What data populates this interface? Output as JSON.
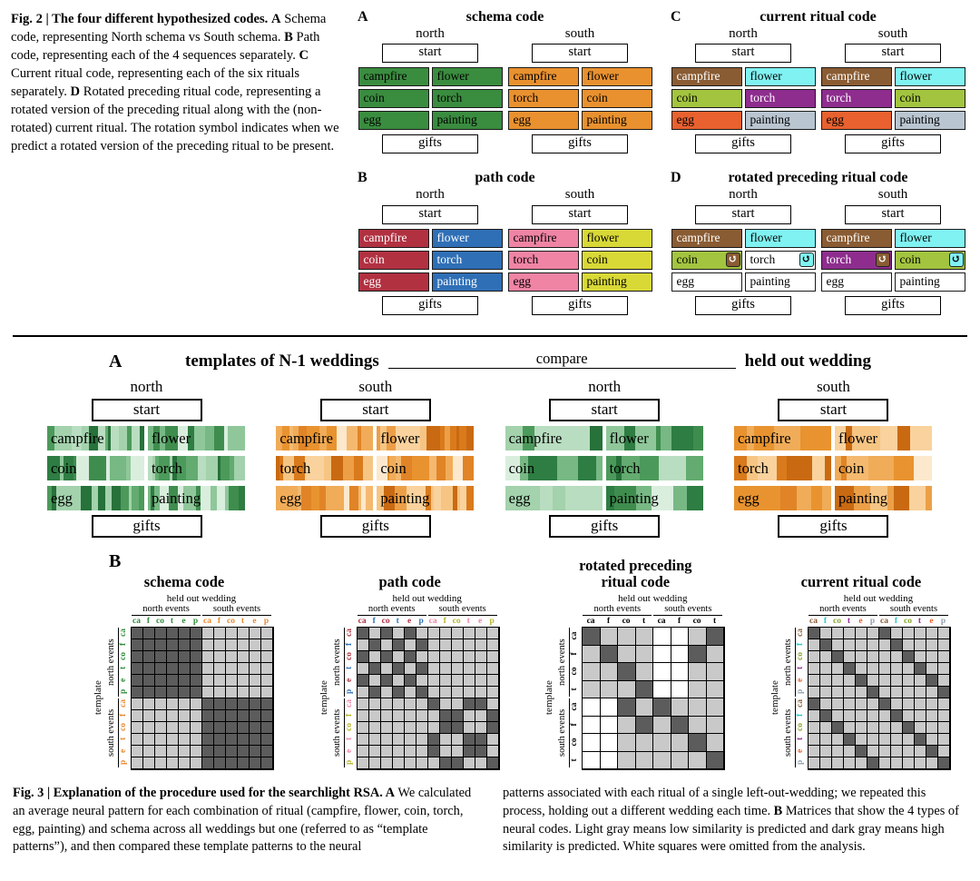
{
  "fig2": {
    "start_label": "start",
    "gifts_label": "gifts",
    "rotation_symbol": "↺",
    "caption_segments": [
      {
        "b": 1,
        "t": "Fig. 2 | The four different hypothesized codes."
      },
      {
        "b": 0,
        "t": " "
      },
      {
        "b": 1,
        "t": "A"
      },
      {
        "b": 0,
        "t": " Schema code, representing North schema vs South schema. "
      },
      {
        "b": 1,
        "t": "B"
      },
      {
        "b": 0,
        "t": " Path code, representing each of the 4 sequences separately. "
      },
      {
        "b": 1,
        "t": "C"
      },
      {
        "b": 0,
        "t": " Current ritual code, representing each of the six rituals separately. "
      },
      {
        "b": 1,
        "t": "D"
      },
      {
        "b": 0,
        "t": " Rotated preceding ritual code, representing a rotated version of the preceding ritual along with the (non-rotated) current ritual. The rotation symbol indicates when we predict a rotated version of the preceding ritual to be present."
      }
    ],
    "panels": [
      {
        "letter": "A",
        "title": "schema code",
        "columns": [
          {
            "name": "north",
            "rows": [
              [
                [
                  "campfire",
                  "#3a8c3f",
                  "#000000"
                ],
                [
                  "flower",
                  "#3a8c3f",
                  "#000000"
                ]
              ],
              [
                [
                  "coin",
                  "#3a8c3f",
                  "#000000"
                ],
                [
                  "torch",
                  "#3a8c3f",
                  "#000000"
                ]
              ],
              [
                [
                  "egg",
                  "#3a8c3f",
                  "#000000"
                ],
                [
                  "painting",
                  "#3a8c3f",
                  "#000000"
                ]
              ]
            ]
          },
          {
            "name": "south",
            "rows": [
              [
                [
                  "campfire",
                  "#e9912f",
                  "#000000"
                ],
                [
                  "flower",
                  "#e9912f",
                  "#000000"
                ]
              ],
              [
                [
                  "torch",
                  "#e9912f",
                  "#000000"
                ],
                [
                  "coin",
                  "#e9912f",
                  "#000000"
                ]
              ],
              [
                [
                  "egg",
                  "#e9912f",
                  "#000000"
                ],
                [
                  "painting",
                  "#e9912f",
                  "#000000"
                ]
              ]
            ]
          }
        ]
      },
      {
        "letter": "C",
        "title": "current ritual code",
        "columns": [
          {
            "name": "north",
            "rows": [
              [
                [
                  "campfire",
                  "#8a5c33",
                  "#ffffff"
                ],
                [
                  "flower",
                  "#80f2f2",
                  "#000000"
                ]
              ],
              [
                [
                  "coin",
                  "#a3c43f",
                  "#000000"
                ],
                [
                  "torch",
                  "#8e2d8e",
                  "#ffffff"
                ]
              ],
              [
                [
                  "egg",
                  "#e8612f",
                  "#000000"
                ],
                [
                  "painting",
                  "#b9c5d1",
                  "#000000"
                ]
              ]
            ]
          },
          {
            "name": "south",
            "rows": [
              [
                [
                  "campfire",
                  "#8a5c33",
                  "#ffffff"
                ],
                [
                  "flower",
                  "#80f2f2",
                  "#000000"
                ]
              ],
              [
                [
                  "torch",
                  "#8e2d8e",
                  "#ffffff"
                ],
                [
                  "coin",
                  "#a3c43f",
                  "#000000"
                ]
              ],
              [
                [
                  "egg",
                  "#e8612f",
                  "#000000"
                ],
                [
                  "painting",
                  "#b9c5d1",
                  "#000000"
                ]
              ]
            ]
          }
        ]
      },
      {
        "letter": "B",
        "title": "path code",
        "columns": [
          {
            "name": "north",
            "rows": [
              [
                [
                  "campfire",
                  "#b13141",
                  "#ffffff"
                ],
                [
                  "flower",
                  "#2f6fb6",
                  "#ffffff"
                ]
              ],
              [
                [
                  "coin",
                  "#b13141",
                  "#ffffff"
                ],
                [
                  "torch",
                  "#2f6fb6",
                  "#ffffff"
                ]
              ],
              [
                [
                  "egg",
                  "#b13141",
                  "#ffffff"
                ],
                [
                  "painting",
                  "#2f6fb6",
                  "#ffffff"
                ]
              ]
            ]
          },
          {
            "name": "south",
            "rows": [
              [
                [
                  "campfire",
                  "#ef84a4",
                  "#000000"
                ],
                [
                  "flower",
                  "#d8d837",
                  "#000000"
                ]
              ],
              [
                [
                  "torch",
                  "#ef84a4",
                  "#000000"
                ],
                [
                  "coin",
                  "#d8d837",
                  "#000000"
                ]
              ],
              [
                [
                  "egg",
                  "#ef84a4",
                  "#000000"
                ],
                [
                  "painting",
                  "#d8d837",
                  "#000000"
                ]
              ]
            ]
          }
        ]
      },
      {
        "letter": "D",
        "title": "rotated preceding ritual code",
        "columns": [
          {
            "name": "north",
            "rows": [
              [
                [
                  "campfire",
                  "#8a5c33",
                  "#ffffff"
                ],
                [
                  "flower",
                  "#80f2f2",
                  "#000000"
                ]
              ],
              [
                [
                  "coin",
                  "#a3c43f",
                  "#000000",
                  [
                    "#8a5c33",
                    "#ffffff"
                  ]
                ],
                [
                  "torch",
                  "#ffffff",
                  "#000000",
                  [
                    "#80f2f2",
                    "#000000"
                  ]
                ]
              ],
              [
                [
                  "egg",
                  "#ffffff",
                  "#000000"
                ],
                [
                  "painting",
                  "#ffffff",
                  "#000000"
                ]
              ]
            ]
          },
          {
            "name": "south",
            "rows": [
              [
                [
                  "campfire",
                  "#8a5c33",
                  "#ffffff"
                ],
                [
                  "flower",
                  "#80f2f2",
                  "#000000"
                ]
              ],
              [
                [
                  "torch",
                  "#8e2d8e",
                  "#ffffff",
                  [
                    "#8a5c33",
                    "#ffffff"
                  ]
                ],
                [
                  "coin",
                  "#a3c43f",
                  "#000000",
                  [
                    "#80f2f2",
                    "#000000"
                  ]
                ]
              ],
              [
                [
                  "egg",
                  "#ffffff",
                  "#000000"
                ],
                [
                  "painting",
                  "#ffffff",
                  "#000000"
                ]
              ]
            ]
          }
        ]
      }
    ]
  },
  "fig3": {
    "panelA": {
      "letter": "A",
      "left_title": "templates of N-1 weddings",
      "compare_label": "compare",
      "right_title": "held out wedding",
      "start_label": "start",
      "gifts_label": "gifts",
      "stripe_palettes": {
        "green": [
          "#27713a",
          "#3f8d4e",
          "#63ab70",
          "#8fc79a",
          "#b9ddc0",
          "#daeede",
          "#4c9a5b",
          "#77b884",
          "#a3d2ac",
          "#2e7d43"
        ],
        "orange": [
          "#c96a12",
          "#e08427",
          "#ec9f47",
          "#f4b96f",
          "#f9d29d",
          "#fce8cd",
          "#d97a1c",
          "#f0ac58",
          "#f6c583",
          "#e8932f"
        ]
      },
      "groups": [
        {
          "name": "north",
          "palette": "green",
          "segments": 14,
          "rows": [
            [
              "campfire",
              "flower"
            ],
            [
              "coin",
              "torch"
            ],
            [
              "egg",
              "painting"
            ]
          ]
        },
        {
          "name": "south",
          "palette": "orange",
          "segments": 14,
          "rows": [
            [
              "campfire",
              "flower"
            ],
            [
              "torch",
              "coin"
            ],
            [
              "egg",
              "painting"
            ]
          ]
        },
        {
          "name": "north",
          "palette": "green",
          "segments": 7,
          "rows": [
            [
              "campfire",
              "flower"
            ],
            [
              "coin",
              "torch"
            ],
            [
              "egg",
              "painting"
            ]
          ]
        },
        {
          "name": "south",
          "palette": "orange",
          "segments": 7,
          "rows": [
            [
              "campfire",
              "flower"
            ],
            [
              "torch",
              "coin"
            ],
            [
              "egg",
              "painting"
            ]
          ]
        }
      ]
    },
    "panelB": {
      "letter": "B",
      "cell_colors": {
        "0": "#ffffff",
        "1": "#c9c9c9",
        "2": "#5c5c5c"
      },
      "matrices": [
        {
          "title": [
            "schema code"
          ],
          "top": "held out wedding",
          "left": "template",
          "groups_top": [
            "north events",
            "south events"
          ],
          "groups_left": [
            "north events",
            "south events"
          ],
          "letters": [
            "ca",
            "f",
            "co",
            "t",
            "e",
            "p",
            "ca",
            "f",
            "co",
            "t",
            "e",
            "p"
          ],
          "letter_colors": [
            "#2e8b3a",
            "#2e8b3a",
            "#2e8b3a",
            "#2e8b3a",
            "#2e8b3a",
            "#2e8b3a",
            "#e8892e",
            "#e8892e",
            "#e8892e",
            "#e8892e",
            "#e8892e",
            "#e8892e"
          ],
          "rows": [
            "222222111111",
            "222222111111",
            "222222111111",
            "222222111111",
            "222222111111",
            "222222111111",
            "111111222222",
            "111111222222",
            "111111222222",
            "111111222222",
            "111111222222",
            "111111222222"
          ]
        },
        {
          "title": [
            "path code"
          ],
          "top": "held out wedding",
          "left": "template",
          "groups_top": [
            "north events",
            "south events"
          ],
          "groups_left": [
            "north events",
            "south events"
          ],
          "letters": [
            "ca",
            "f",
            "co",
            "t",
            "e",
            "p",
            "ca",
            "f",
            "co",
            "t",
            "e",
            "p"
          ],
          "letter_colors": [
            "#b13141",
            "#2f6fb6",
            "#b13141",
            "#2f6fb6",
            "#b13141",
            "#2f6fb6",
            "#ef84a4",
            "#b5b526",
            "#b5b526",
            "#ef84a4",
            "#ef84a4",
            "#b5b526"
          ],
          "rows": [
            "212121111111",
            "121212111111",
            "212121111111",
            "121212111111",
            "212121111111",
            "121212111111",
            "111111211221",
            "111111122112",
            "111111122112",
            "111111211221",
            "111111211221",
            "111111122112"
          ]
        },
        {
          "title": [
            "rotated preceding",
            "ritual code"
          ],
          "top": "held out wedding",
          "left": "template",
          "groups_top": [
            "north events",
            "south events"
          ],
          "groups_left": [
            "north events",
            "south events"
          ],
          "letters": [
            "ca",
            "f",
            "co",
            "t",
            "ca",
            "f",
            "co",
            "t"
          ],
          "letter_colors": [
            "#000000",
            "#000000",
            "#000000",
            "#000000",
            "#000000",
            "#000000",
            "#000000",
            "#000000"
          ],
          "rows": [
            "21110012",
            "12110021",
            "11210011",
            "11120011",
            "00212111",
            "00121211",
            "00111121",
            "00111112"
          ]
        },
        {
          "title": [
            "current ritual code"
          ],
          "top": "held out wedding",
          "left": "template",
          "groups_top": [
            "north events",
            "south events"
          ],
          "groups_left": [
            "north events",
            "south events"
          ],
          "letters": [
            "ca",
            "f",
            "co",
            "t",
            "e",
            "p",
            "ca",
            "f",
            "co",
            "t",
            "e",
            "p"
          ],
          "letter_colors": [
            "#8a5c33",
            "#2fc7c7",
            "#86a62c",
            "#8e2d8e",
            "#e8612f",
            "#8e9fae",
            "#8a5c33",
            "#2fc7c7",
            "#86a62c",
            "#8e2d8e",
            "#e8612f",
            "#8e9fae"
          ],
          "rows": [
            "211111211111",
            "121111121111",
            "112111112111",
            "111211111211",
            "111121111121",
            "111112111112",
            "211111211111",
            "121111121111",
            "112111112111",
            "111211111211",
            "111121111121",
            "111112111112"
          ]
        }
      ]
    },
    "caption_left_segments": [
      {
        "b": 1,
        "t": "Fig. 3 | Explanation of the procedure used for the searchlight RSA. "
      },
      {
        "b": 1,
        "t": "A"
      },
      {
        "b": 0,
        "t": " We calculated an average neural pattern for each combination of ritual (campfire, flower, coin, torch, egg, painting) and schema across all weddings but one (referred to as “template patterns”), and then compared these template patterns to the neural"
      }
    ],
    "caption_right_segments": [
      {
        "b": 0,
        "t": "patterns associated with each ritual of a single left-out-wedding; we repeated this process, holding out a different wedding each time. "
      },
      {
        "b": 1,
        "t": "B"
      },
      {
        "b": 0,
        "t": " Matrices that show the 4 types of neural codes. Light gray means low similarity is predicted and dark gray means high similarity is predicted. White squares were omitted from the analysis."
      }
    ]
  }
}
